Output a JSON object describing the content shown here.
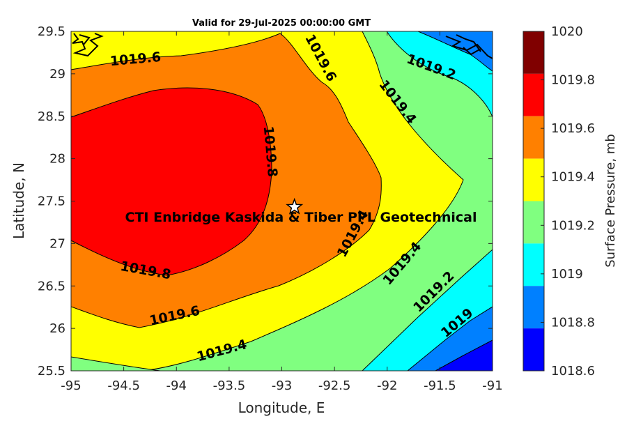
{
  "title": "Valid for 29-Jul-2025 00:00:00 GMT",
  "x_axis": {
    "label": "Longitude, E",
    "ticks": [
      "-95",
      "-94.5",
      "-94",
      "-93.5",
      "-93",
      "-92.5",
      "-92",
      "-91.5",
      "-91"
    ]
  },
  "y_axis": {
    "label": "Latitude, N",
    "ticks": [
      "29.5",
      "29",
      "28.5",
      "28",
      "27.5",
      "27",
      "26.5",
      "26",
      "25.5"
    ]
  },
  "colorbar": {
    "label": "Surface Pressure, mb",
    "ticks": [
      "1020",
      "1019.8",
      "1019.6",
      "1019.4",
      "1019.2",
      "1019",
      "1018.8",
      "1018.6"
    ],
    "colors": [
      "#800000",
      "#ff0000",
      "#ff8000",
      "#ffff00",
      "#80ff80",
      "#00ffff",
      "#0080ff",
      "#0000ff"
    ]
  },
  "site": {
    "label": "CTI Enbridge  Kaskida & Tiber PPL Geotechnical",
    "marker": "star-icon",
    "lon": -92.88,
    "lat": 27.43
  },
  "contour_labels": [
    "1019.6",
    "1019.6",
    "1019.2",
    "1019.4",
    "1019.8",
    "1019.4",
    "1019.4",
    "1019.8",
    "1019.2",
    "1019.6",
    "1019",
    "1019.4"
  ],
  "chart_data": {
    "type": "heatmap",
    "title": "Valid for 29-Jul-2025 00:00:00 GMT",
    "xlabel": "Longitude, E",
    "ylabel": "Latitude, N",
    "xlim": [
      -95,
      -91
    ],
    "ylim": [
      25.5,
      29.5
    ],
    "colorbar_label": "Surface Pressure, mb",
    "clim": [
      1018.6,
      1020
    ],
    "levels": [
      1018.6,
      1018.8,
      1019,
      1019.2,
      1019.4,
      1019.6,
      1019.8,
      1020
    ],
    "contour_values": [
      1019.8,
      1019.6,
      1019.4,
      1019.2,
      1019
    ],
    "annotations": [
      "CTI Enbridge  Kaskida & Tiber PPL Geotechnical"
    ]
  }
}
